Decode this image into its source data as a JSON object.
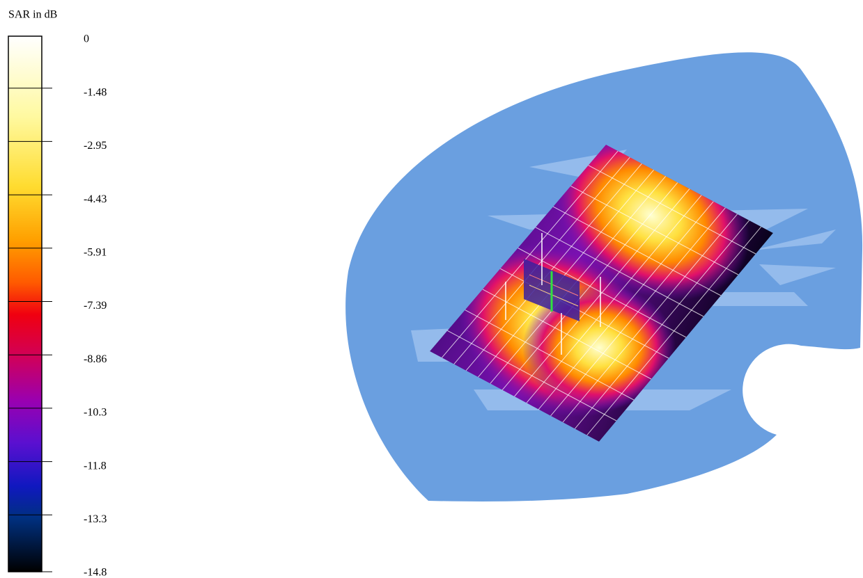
{
  "colorbar": {
    "title": "SAR in dB",
    "labels": [
      "0",
      "-1.48",
      "-2.95",
      "-4.43",
      "-5.91",
      "-7.39",
      "-8.86",
      "-10.3",
      "-11.8",
      "-13.3",
      "-14.8"
    ]
  }
}
